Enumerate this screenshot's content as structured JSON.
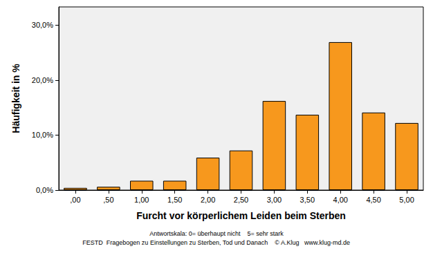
{
  "chart_data": {
    "type": "bar",
    "x_label": "Furcht vor körperlichem Leiden beim Sterben",
    "y_label": "Häufigkeit in %",
    "annotations": [
      "Antwortskala: 0= überhaupt nicht    5= sehr stark",
      "FESTD  Fragebogen zu Einstellungen zu Sterben, Tod und Danach    © A.Klug   www.klug-md.de"
    ],
    "categories": [
      ",00",
      ",50",
      "1,00",
      "1,50",
      "2,00",
      "2,50",
      "3,00",
      "3,50",
      "4,00",
      "4,50",
      "5,00"
    ],
    "values": [
      0.4,
      0.6,
      1.7,
      1.7,
      5.9,
      7.2,
      16.2,
      13.7,
      26.9,
      14.1,
      12.2
    ],
    "color": "#f7981d",
    "ylim": [
      0,
      33.3
    ],
    "yticks": [
      {
        "value": 0,
        "label": "0,0%"
      },
      {
        "value": 10,
        "label": "10,0%"
      },
      {
        "value": 20,
        "label": "20,0%"
      },
      {
        "value": 30,
        "label": "30,0%"
      }
    ],
    "grid": false
  }
}
